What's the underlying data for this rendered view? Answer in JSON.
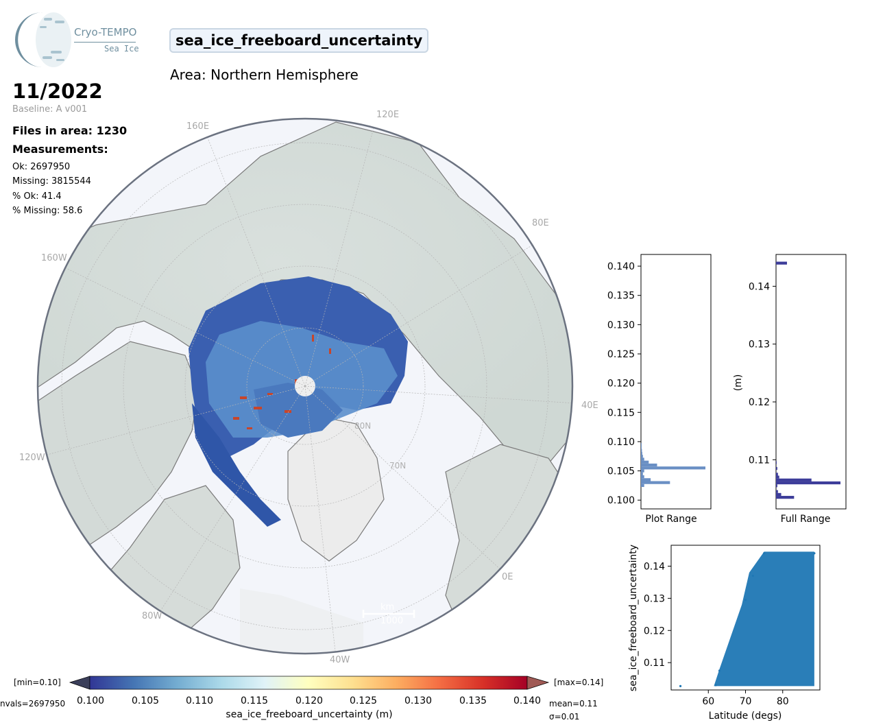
{
  "logo": {
    "title": "Cryo-TEMPO",
    "subtitle": "Sea Ice"
  },
  "header": {
    "variable": "sea_ice_freeboard_uncertainty",
    "area": "Area: Northern Hemisphere"
  },
  "info": {
    "date": "11/2022",
    "baseline": "Baseline: A v001",
    "files": "Files in area: 1230",
    "measurements_title": "Measurements:",
    "ok": "Ok: 2697950",
    "missing": "Missing: 3815544",
    "pct_ok": "% Ok: 41.4",
    "pct_missing": "% Missing: 58.6"
  },
  "map": {
    "lon_labels": [
      "120E",
      "160E",
      "80E",
      "160W",
      "40E",
      "120W",
      "0E",
      "80W",
      "40W"
    ],
    "lat_labels": [
      "80N",
      "70N"
    ],
    "scalebar": {
      "unit": "km",
      "value": "1000"
    }
  },
  "colorbar": {
    "min_label": "[min=0.10]",
    "max_label": "[max=0.14]",
    "nvals": "nvals=2697950",
    "mean": "mean=0.11",
    "sigma": "σ=0.01",
    "ticks": [
      "0.100",
      "0.105",
      "0.110",
      "0.115",
      "0.120",
      "0.125",
      "0.130",
      "0.135",
      "0.140"
    ],
    "label": "sea_ice_freeboard_uncertainty (m)",
    "range": [
      0.1,
      0.14
    ],
    "colormap": "RdYlBu_r"
  },
  "chart_data": [
    {
      "type": "bar",
      "orientation": "horizontal",
      "xlabel": "Plot Range",
      "ylim": [
        0.0985,
        0.142
      ],
      "yticks": [
        "0.100",
        "0.105",
        "0.110",
        "0.115",
        "0.120",
        "0.125",
        "0.130",
        "0.135",
        "0.140"
      ],
      "bins": [
        {
          "y": 0.1025,
          "v": 0.05
        },
        {
          "y": 0.103,
          "v": 0.45
        },
        {
          "y": 0.1035,
          "v": 0.15
        },
        {
          "y": 0.104,
          "v": 0.05
        },
        {
          "y": 0.1045,
          "v": 0.03
        },
        {
          "y": 0.105,
          "v": 0.05
        },
        {
          "y": 0.1055,
          "v": 1.0
        },
        {
          "y": 0.106,
          "v": 0.25
        },
        {
          "y": 0.1065,
          "v": 0.12
        },
        {
          "y": 0.107,
          "v": 0.05
        },
        {
          "y": 0.1075,
          "v": 0.03
        },
        {
          "y": 0.108,
          "v": 0.02
        },
        {
          "y": 0.1085,
          "v": 0.015
        },
        {
          "y": 0.109,
          "v": 0.01
        },
        {
          "y": 0.1095,
          "v": 0.01
        }
      ],
      "color": "#6a8fc4"
    },
    {
      "type": "bar",
      "orientation": "horizontal",
      "xlabel": "Full Range",
      "ylabel": "(m)",
      "ylim": [
        0.1015,
        0.1455
      ],
      "yticks": [
        "0.11",
        "0.12",
        "0.13",
        "0.14"
      ],
      "bins": [
        {
          "y": 0.1035,
          "v": 0.28
        },
        {
          "y": 0.104,
          "v": 0.08
        },
        {
          "y": 0.1045,
          "v": 0.03
        },
        {
          "y": 0.1055,
          "v": 0.02
        },
        {
          "y": 0.106,
          "v": 1.0
        },
        {
          "y": 0.1065,
          "v": 0.55
        },
        {
          "y": 0.107,
          "v": 0.05
        },
        {
          "y": 0.1075,
          "v": 0.03
        },
        {
          "y": 0.1085,
          "v": 0.02
        },
        {
          "y": 0.1095,
          "v": 0.01
        },
        {
          "y": 0.144,
          "v": 0.17
        }
      ],
      "color": "#3d3d9a"
    },
    {
      "type": "scatter",
      "xlabel": "Latitude (degs)",
      "ylabel": "sea_ice_freeboard_uncertainty",
      "xlim": [
        50,
        90
      ],
      "ylim": [
        0.1015,
        0.1465
      ],
      "xticks": [
        60,
        70,
        80
      ],
      "yticks": [
        "0.11",
        "0.12",
        "0.13",
        "0.14"
      ],
      "color": "#1f77b4",
      "points_summary": [
        {
          "x": 52.5,
          "y": 0.1027
        },
        {
          "x": 62,
          "y": 0.103
        },
        {
          "x": 63,
          "y": 0.1075
        },
        {
          "x": 70,
          "y": 0.1295
        },
        {
          "x": 72,
          "y": 0.137
        },
        {
          "x": 75,
          "y": 0.144
        },
        {
          "x": 88.5,
          "y": 0.144
        }
      ]
    }
  ]
}
